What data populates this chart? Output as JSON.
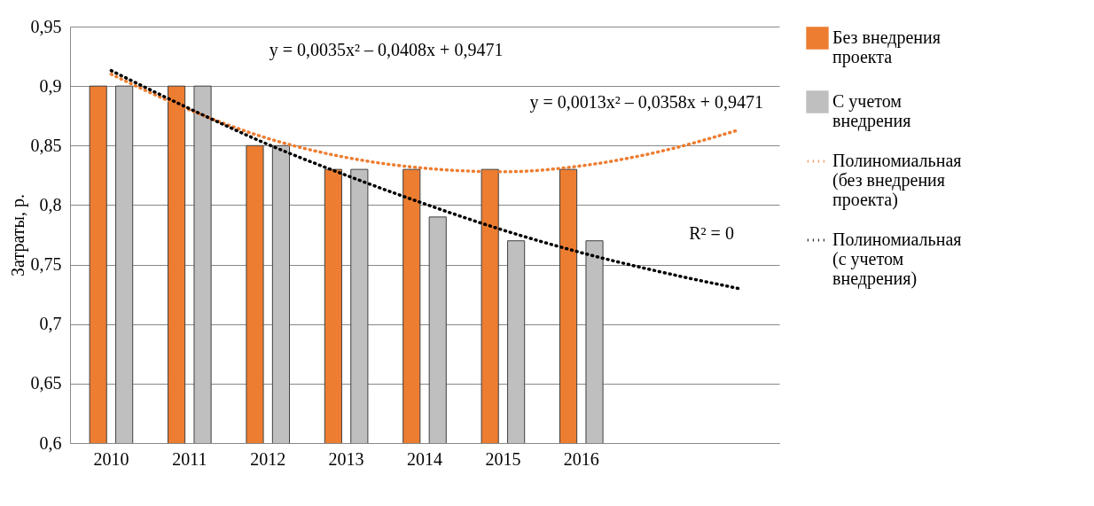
{
  "chart_data": {
    "type": "bar",
    "ylabel": "Затраты, р.",
    "categories": [
      "2010",
      "2011",
      "2012",
      "2013",
      "2014",
      "2015",
      "2016",
      null,
      null
    ],
    "series": [
      {
        "name": "Без внедрения проекта",
        "color": "#ed7d31",
        "values": [
          0.9,
          0.9,
          0.85,
          0.83,
          0.83,
          0.83,
          0.83,
          null,
          null
        ]
      },
      {
        "name": "С учетом внедрения",
        "color": "#bfbfbf",
        "values": [
          0.9,
          0.9,
          0.85,
          0.83,
          0.79,
          0.77,
          0.77,
          null,
          null
        ]
      },
      {
        "name": "Полиномиальная (без внедрения проекта)",
        "type": "line",
        "line_style": "dotted",
        "marker": "none",
        "color": "#ed7d31",
        "values": [
          0.91,
          0.88,
          0.856,
          0.84,
          0.831,
          0.828,
          0.833,
          0.845,
          0.863
        ]
      },
      {
        "name": "Полиномиальная (с учетом внедрения)",
        "type": "line",
        "line_style": "dotted",
        "marker": "none",
        "color": "#000000",
        "values": [
          0.913,
          0.881,
          0.851,
          0.825,
          0.801,
          0.779,
          0.76,
          0.744,
          0.73
        ]
      }
    ],
    "ylim": [
      0.6,
      0.95
    ],
    "yticks": [
      {
        "value": 0.6,
        "label": "0,6"
      },
      {
        "value": 0.65,
        "label": "0,65"
      },
      {
        "value": 0.7,
        "label": "0,7"
      },
      {
        "value": 0.75,
        "label": "0,75"
      },
      {
        "value": 0.8,
        "label": "0,8"
      },
      {
        "value": 0.85,
        "label": "0,85"
      },
      {
        "value": 0.9,
        "label": "0,9"
      },
      {
        "value": 0.95,
        "label": "0,95"
      }
    ],
    "grid": "y",
    "legend": "right",
    "annotations": [
      "y = 0,0035x² – 0,0408x + 0,9471",
      "y = 0,0013x² – 0,0358x + 0,9471",
      "R² = 0"
    ]
  }
}
